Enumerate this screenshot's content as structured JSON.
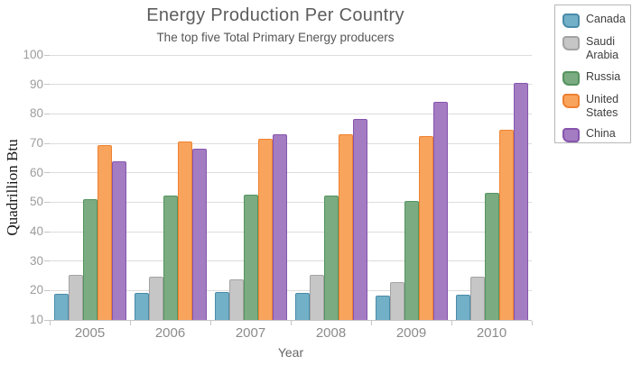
{
  "title": "Energy Production Per Country",
  "subtitle": "The top five Total Primary Energy producers",
  "chart_data": {
    "type": "bar",
    "title": "Energy Production Per Country",
    "subtitle": "The top five Total Primary Energy producers",
    "xlabel": "Year",
    "ylabel": "Quadrillion Btu",
    "ylim": [
      10,
      100
    ],
    "yticks": [
      10,
      20,
      30,
      40,
      50,
      60,
      70,
      80,
      90,
      100
    ],
    "grid": "horizontal",
    "legend_position": "top-right",
    "categories": [
      "2005",
      "2006",
      "2007",
      "2008",
      "2009",
      "2010"
    ],
    "series": [
      {
        "name": "Canada",
        "color": "#72b0c8",
        "border": "#4a8ba8",
        "values": [
          19.0,
          19.2,
          19.5,
          19.1,
          18.3,
          18.5
        ]
      },
      {
        "name": "Saudi Arabia",
        "color": "#c6c6c6",
        "border": "#a3a3a3",
        "values": [
          25.4,
          24.7,
          23.7,
          25.2,
          22.8,
          24.8
        ]
      },
      {
        "name": "Russia",
        "color": "#7aab81",
        "border": "#55935f",
        "values": [
          51.0,
          52.1,
          52.6,
          52.4,
          50.4,
          53.2
        ]
      },
      {
        "name": "United States",
        "color": "#f9a45c",
        "border": "#ee8130",
        "values": [
          69.4,
          70.7,
          71.4,
          73.1,
          72.5,
          74.7
        ]
      },
      {
        "name": "China",
        "color": "#a37cc2",
        "border": "#8755ad",
        "values": [
          63.9,
          68.1,
          73.2,
          78.3,
          84.0,
          90.5
        ]
      }
    ]
  }
}
